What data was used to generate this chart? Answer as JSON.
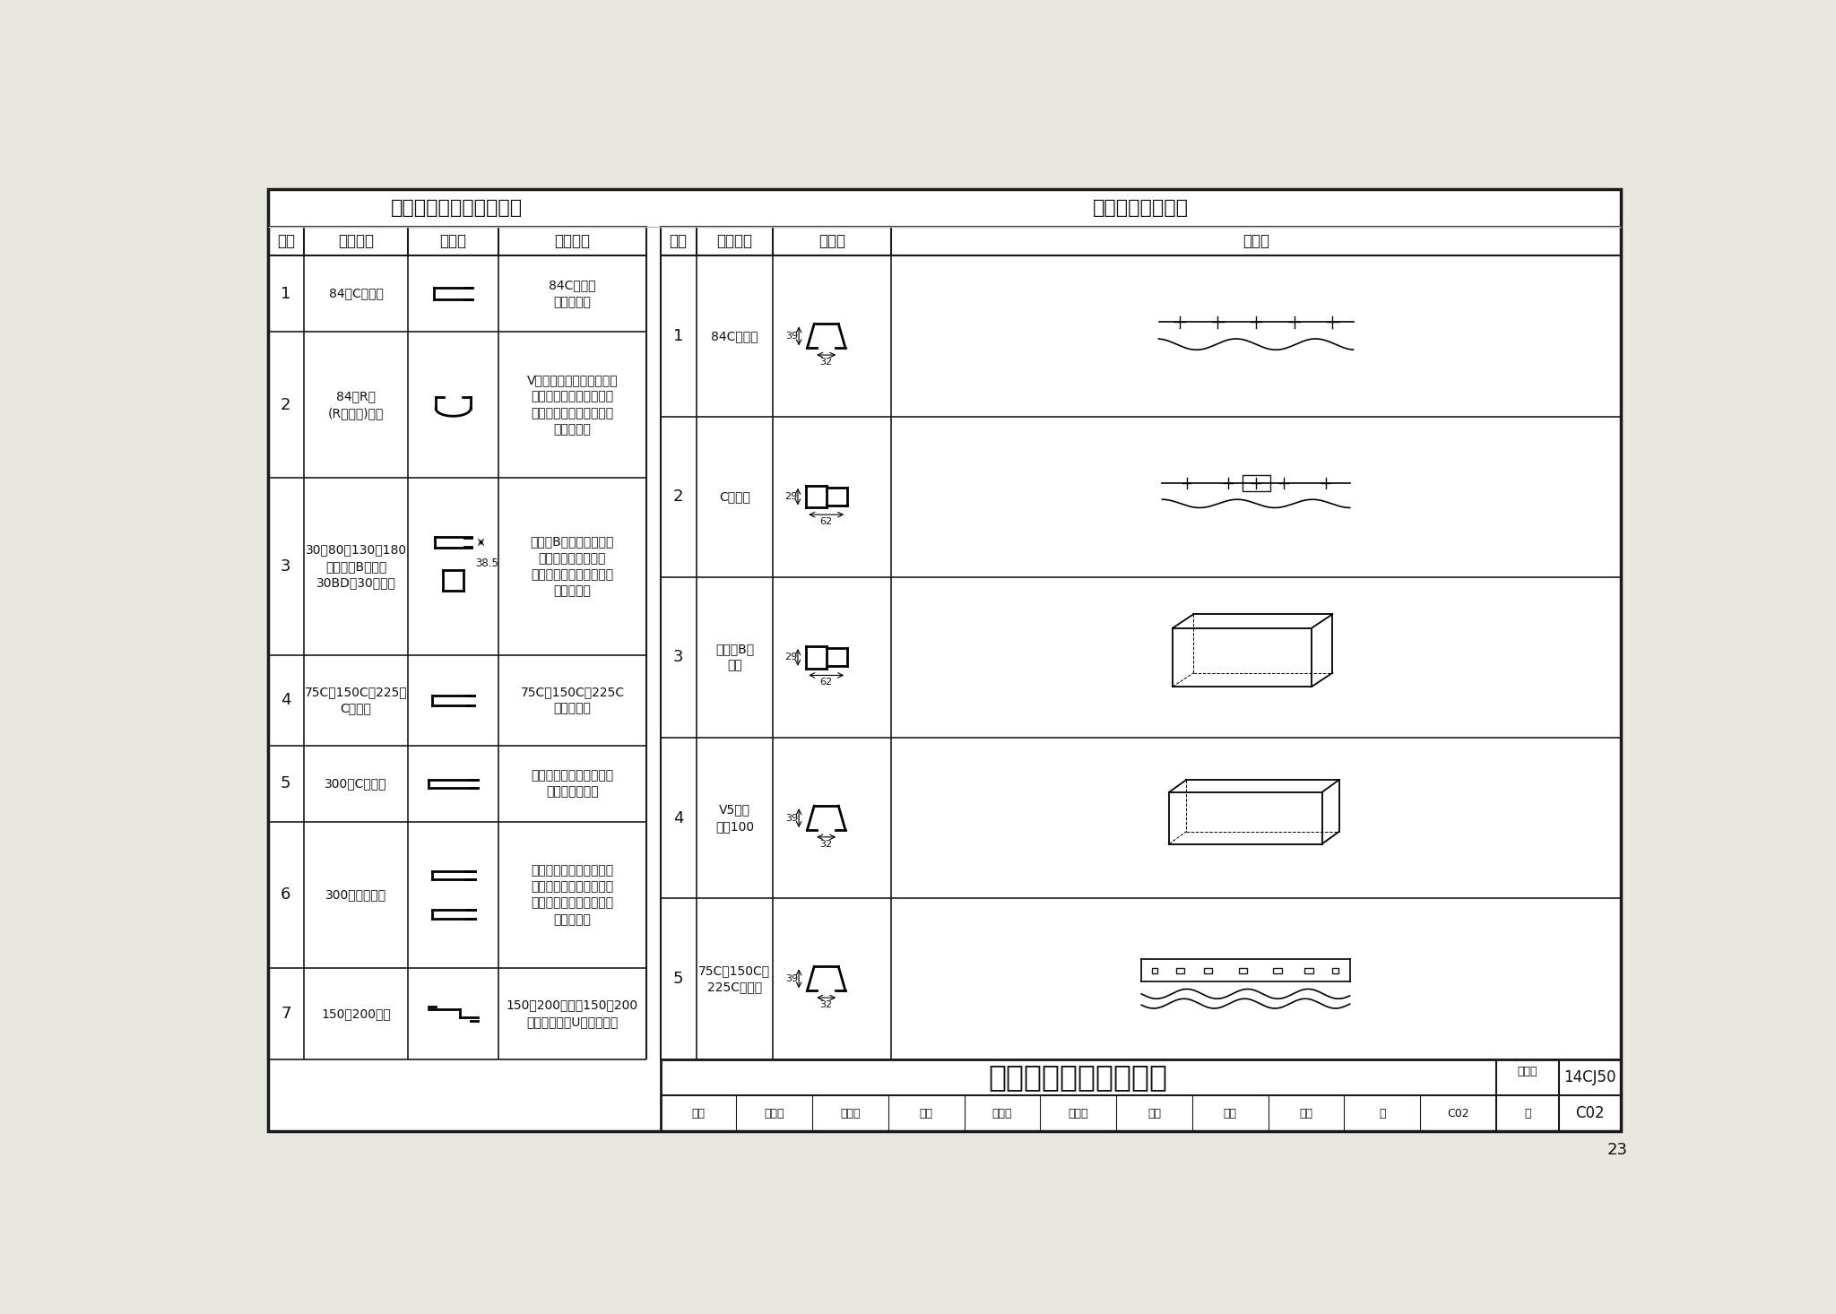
{
  "bg_color": "#e8e8e0",
  "content_bg": "#ffffff",
  "border_color": "#1a1a1a",
  "title_left": "条型板型号及配套龙骨表",
  "title_right": "条型板配套龙骨表",
  "left_headers": [
    "序号",
    "产品型号",
    "剖面图",
    "配套龙骨"
  ],
  "left_rows": [
    {
      "seq": "1",
      "product": "84宽C型条板",
      "desc": "84C型龙骨\n条板龙骨等"
    },
    {
      "seq": "2",
      "product": "84宽R型\n(R型弧形)条板",
      "desc": "V系列龙骨、弧形龙骨、可\n变曲龙骨（配合弧形钢基\n架）、无钩齿龙骨（配合\n螺形夹）等"
    },
    {
      "seq": "3",
      "product": "30、80、130、180\n宽多模数B型条板\n30BD型30宽条板",
      "desc": "多模数B型龙骨、可变曲\n龙骨（配合弧形钢基\n架）、无钩齿龙骨（配合\n螺形夹）等"
    },
    {
      "seq": "4",
      "product": "75C、150C、225宽\nC型条板",
      "desc": "75C、150C、225C\n条板型龙骨"
    },
    {
      "seq": "5",
      "product": "300宽C型条板",
      "desc": "吊架式、暗架式龙骨，吊\n扣、垂直吊扣等"
    },
    {
      "seq": "6",
      "product": "300宽弧形条板",
      "desc": "暗架、吊架龙骨、暗架专\n用卡件、离缝卡件、防风\n夹、螺丝固定夹、吊扣、\n垂直吊扣等"
    },
    {
      "seq": "7",
      "product": "150、200条板",
      "desc": "150、200龙骨、150、200\n螺丝固定夹、U型防风扣等"
    }
  ],
  "right_headers": [
    "序号",
    "龙骨名称",
    "剖面图",
    "侧面图"
  ],
  "right_rows": [
    {
      "seq": "1",
      "name": "84C型龙骨",
      "dim_h": "39",
      "dim_w": "32"
    },
    {
      "seq": "2",
      "name": "C型龙骨",
      "dim_h": "29",
      "dim_w": "62"
    },
    {
      "seq": "3",
      "name": "多模数B型\n龙骨",
      "dim_h": "29",
      "dim_w": "62"
    },
    {
      "seq": "4",
      "name": "V5龙骨\n模数100",
      "dim_h": "39",
      "dim_w": "32"
    },
    {
      "seq": "5",
      "name": "75C、150C、\n225C型龙骨",
      "dim_h": "39",
      "dim_w": "32"
    }
  ],
  "footer_title": "澳绒板条形板吊顶龙骨",
  "atlas_label": "图集号",
  "atlas_no": "14CJ50",
  "audit_row": "审核|饶良修|饶依存|校对|钱勇烁|钱勇烁|设计|陈旭|陈旭|页|C02",
  "page_num": "23"
}
